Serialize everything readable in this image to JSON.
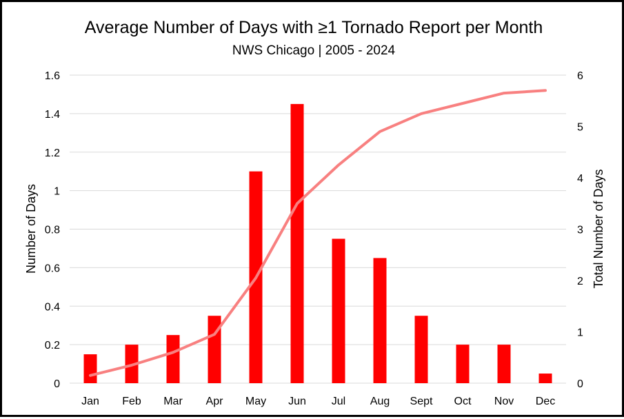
{
  "chart_data": {
    "type": "bar",
    "title": "Average Number of Days with ≥1 Tornado Report per Month",
    "subtitle": "NWS Chicago  | 2005 - 2024",
    "categories": [
      "Jan",
      "Feb",
      "Mar",
      "Apr",
      "May",
      "Jun",
      "Jul",
      "Aug",
      "Sept",
      "Oct",
      "Nov",
      "Dec"
    ],
    "ylabel": "Number of Days",
    "ylabel_right": "Total Number of Days",
    "ylim": [
      0,
      1.6
    ],
    "yticks": [
      "0",
      "0.2",
      "0.4",
      "0.6",
      "0.8",
      "1",
      "1.2",
      "1.4",
      "1.6"
    ],
    "y2lim": [
      0,
      6
    ],
    "y2ticks": [
      "0",
      "1",
      "2",
      "3",
      "4",
      "5",
      "6"
    ],
    "grid": true,
    "series": [
      {
        "type": "bar",
        "axis": "left",
        "color": "#ff0000",
        "values": [
          0.15,
          0.2,
          0.25,
          0.35,
          1.1,
          1.45,
          0.75,
          0.65,
          0.35,
          0.2,
          0.2,
          0.05
        ]
      },
      {
        "type": "line",
        "axis": "right",
        "color": "#f88080",
        "values": [
          0.15,
          0.35,
          0.6,
          0.95,
          2.05,
          3.5,
          4.25,
          4.9,
          5.25,
          5.45,
          5.65,
          5.7
        ]
      }
    ]
  }
}
